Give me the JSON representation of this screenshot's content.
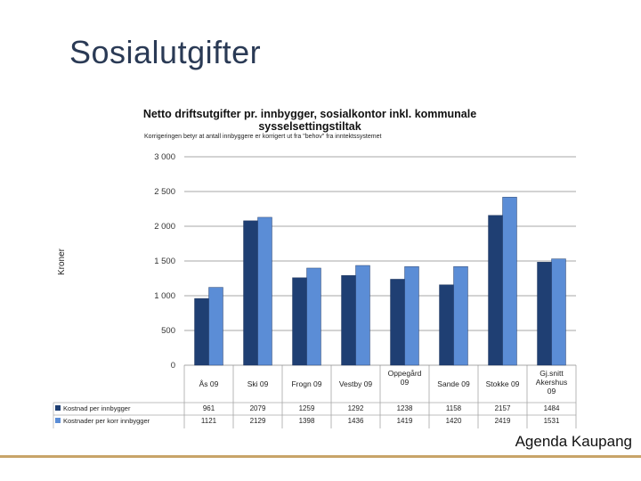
{
  "slide": {
    "title": "Sosialutgifter",
    "footer": "Agenda Kaupang"
  },
  "colors": {
    "series1": "#1f3f73",
    "series2": "#5b8dd6",
    "grid": "#8a8a8a",
    "footer_line": "#c8a469"
  },
  "chart_data": {
    "type": "bar",
    "title": "Netto driftsutgifter pr. innbygger, sosialkontor inkl. kommunale sysselsettingstiltak",
    "subtitle": "Korrigeringen betyr at antall innbyggere er korrigert ut fra \"behov\" fra inntektssystemet",
    "ylabel": "Kroner",
    "xlabel": "",
    "ylim": [
      0,
      3000
    ],
    "yticks": [
      0,
      500,
      1000,
      1500,
      2000,
      2500,
      3000
    ],
    "ytick_labels": [
      "0",
      "500",
      "1 000",
      "1 500",
      "2 000",
      "2 500",
      "3 000"
    ],
    "grid": true,
    "legend": "table-below",
    "categories": [
      [
        "Ås 09"
      ],
      [
        "Ski 09"
      ],
      [
        "Frogn 09"
      ],
      [
        "Vestby 09"
      ],
      [
        "Oppegård",
        "09"
      ],
      [
        "Sande 09"
      ],
      [
        "Stokke 09"
      ],
      [
        "Gj.snitt",
        "Akershus",
        "09"
      ]
    ],
    "series": [
      {
        "name": "Kostnad per innbygger",
        "values": [
          961,
          2079,
          1259,
          1292,
          1238,
          1158,
          2157,
          1484
        ]
      },
      {
        "name": "Kostnader per  korr innbygger",
        "values": [
          1121,
          2129,
          1398,
          1436,
          1419,
          1420,
          2419,
          1531
        ]
      }
    ]
  }
}
